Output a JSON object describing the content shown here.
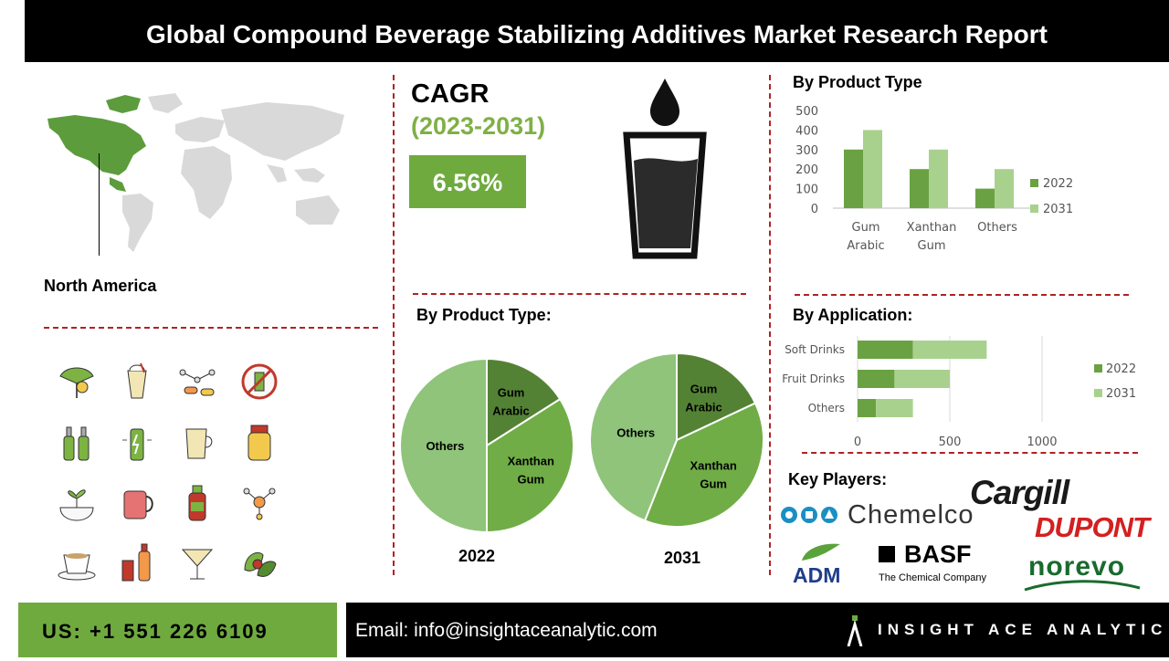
{
  "header": {
    "title": "Global Compound Beverage Stabilizing Additives Market Research Report"
  },
  "region": {
    "label": "North America"
  },
  "cagr": {
    "label": "CAGR",
    "period": "(2023-2031)",
    "value": "6.56%"
  },
  "sections": {
    "product_type_bar": "By Product Type",
    "product_type_pie": "By Product Type:",
    "application": "By Application:",
    "key_players": "Key Players:"
  },
  "key_players": {
    "chemelco": "Chemelco",
    "cargill": "Cargill",
    "dupont": "DUPONT",
    "adm": "ADM",
    "basf": "BASF",
    "basf_tagline": "The Chemical Company",
    "norevo": "norevo"
  },
  "footer": {
    "phone": "US: +1 551 226 6109",
    "email": "Email: info@insightaceanalytic.com",
    "brand": "INSIGHT ACE ANALYTIC"
  },
  "icons": [
    "ginkgo-icon",
    "smoothie-icon",
    "molecule-capsule-icon",
    "no-drink-icon",
    "bottles-icon",
    "energy-drink-icon",
    "latte-icon",
    "jar-icon",
    "plant-bowl-icon",
    "mug-icon",
    "juice-bottle-icon",
    "molecule-icon",
    "coffee-cup-icon",
    "cans-bottle-icon",
    "cocktail-icon",
    "leaves-icon"
  ],
  "colors": {
    "dark_green": "#6aa243",
    "light_green": "#a9d18e",
    "pie_dark": "#548235",
    "pie_mid": "#70ad47",
    "pie_light": "#8fc47a",
    "accent": "#6faa3f",
    "divider": "#b02222"
  },
  "chart_data": [
    {
      "type": "bar",
      "categories": [
        "Gum Arabic",
        "Xanthan Gum",
        "Others"
      ],
      "series": [
        {
          "name": "2022",
          "values": [
            300,
            200,
            100
          ]
        },
        {
          "name": "2031",
          "values": [
            400,
            300,
            200
          ]
        }
      ],
      "ylim": [
        0,
        500
      ],
      "yticks": [
        0,
        100,
        200,
        300,
        400,
        500
      ],
      "legend": "right"
    },
    {
      "type": "bar",
      "orientation": "horizontal",
      "stacked": true,
      "categories": [
        "Soft Drinks",
        "Fruit Drinks",
        "Others"
      ],
      "series": [
        {
          "name": "2022",
          "values": [
            300,
            200,
            100
          ]
        },
        {
          "name": "2031",
          "values": [
            400,
            300,
            200
          ]
        }
      ],
      "xlim": [
        0,
        1000
      ],
      "xticks": [
        0,
        500,
        1000
      ],
      "legend": "right"
    },
    {
      "type": "pie",
      "title": "2022",
      "labels": [
        "Gum Arabic",
        "Xanthan Gum",
        "Others"
      ],
      "values": [
        16,
        34,
        50
      ]
    },
    {
      "type": "pie",
      "title": "2031",
      "labels": [
        "Gum Arabic",
        "Xanthan Gum",
        "Others"
      ],
      "values": [
        18,
        38,
        44
      ]
    }
  ]
}
